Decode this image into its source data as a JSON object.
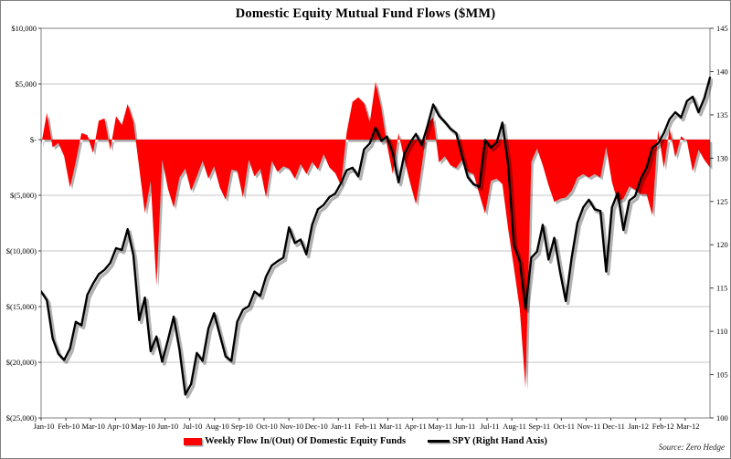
{
  "title": "Domestic Equity Mutual Fund Flows ($MM)",
  "source": "Source: Zero Hedge",
  "legend": {
    "flows_label": "Weekly Flow In/(Out) Of Domestic Equity Funds",
    "spy_label": "SPY (Right Hand Axis)"
  },
  "colors": {
    "flows_area": "#fe0000",
    "spy_line": "#000000",
    "gridline": "#c6c6c6",
    "plot_border": "#808080",
    "tick": "#404040",
    "shadow": "rgba(0,0,0,0.30)"
  },
  "chart_data": {
    "type": "area",
    "subtype": "combo-area-left-axis-line-right-axis",
    "x_unit": "weeks",
    "grid": "horizontal-on",
    "legend_position": "bottom-center",
    "month_labels": [
      "Jan-10",
      "Feb-10",
      "Mar-10",
      "Apr-10",
      "May-10",
      "Jun-10",
      "Jul-10",
      "Aug-10",
      "Sep-10",
      "Oct-10",
      "Nov-10",
      "Dec-10",
      "Jan-11",
      "Feb-11",
      "Mar-11",
      "Apr-11",
      "May-11",
      "Jun-11",
      "Jul-11",
      "Aug-11",
      "Sep-11",
      "Oct-11",
      "Nov-11",
      "Dec-11",
      "Jan-12",
      "Feb-12",
      "Mar-12"
    ],
    "left_axis": {
      "title": "Weekly Flow In/(Out) Of Domestic Equity Funds ($MM)",
      "min": -25000,
      "max": 10000,
      "step": 5000,
      "tick_labels": [
        "$10,000",
        "$5,000",
        "$-",
        "$(5,000)",
        "$(10,000)",
        "$(15,000)",
        "$(20,000)",
        "$(25,000)"
      ],
      "tick_values": [
        10000,
        5000,
        0,
        -5000,
        -10000,
        -15000,
        -20000,
        -25000
      ]
    },
    "right_axis": {
      "title": "SPY (Right Hand Axis)",
      "min": 100,
      "max": 145,
      "step": 5,
      "tick_labels": [
        "145",
        "140",
        "135",
        "130",
        "125",
        "120",
        "115",
        "110",
        "105",
        "100"
      ],
      "tick_values": [
        145,
        140,
        135,
        130,
        125,
        120,
        115,
        110,
        105,
        100
      ]
    },
    "series": [
      {
        "name": "Weekly Flow In/(Out) Of Domestic Equity Funds",
        "type": "area",
        "axis": "left",
        "color": "#fe0000",
        "values": [
          -500,
          2400,
          -700,
          -300,
          -1500,
          -4300,
          -2000,
          600,
          400,
          -1200,
          1700,
          1900,
          -900,
          2100,
          1300,
          3200,
          1600,
          -2500,
          -6600,
          -3700,
          -13100,
          -1800,
          -4400,
          -6100,
          -3400,
          -2600,
          -4600,
          -3300,
          -1900,
          -3500,
          -2400,
          -4300,
          -5400,
          -2700,
          -2800,
          -5200,
          -1800,
          -3300,
          -2600,
          -5200,
          -1900,
          -2900,
          -2400,
          -2600,
          -3500,
          -2200,
          -3100,
          -2000,
          -2700,
          -1300,
          -2500,
          -3000,
          -4100,
          650,
          3400,
          3800,
          3300,
          1550,
          5200,
          2800,
          -500,
          -3100,
          570,
          -1800,
          -3900,
          -5800,
          -2400,
          1400,
          2000,
          -2050,
          -1500,
          -2300,
          -2550,
          -1800,
          -2900,
          -3100,
          -4900,
          -6650,
          -3700,
          -3500,
          -4000,
          -8000,
          -11500,
          -15200,
          -22300,
          -2000,
          -800,
          -2300,
          -4100,
          -5600,
          -5300,
          -5200,
          -4600,
          -3400,
          -3100,
          -3400,
          -3100,
          -3400,
          -650,
          -3800,
          -5600,
          -5300,
          -4200,
          -4500,
          -4900,
          -4900,
          -6800,
          850,
          -2550,
          1000,
          -1600,
          300,
          -150,
          -2850,
          -900,
          -1800,
          -2500
        ]
      },
      {
        "name": "SPY (Right Hand Axis)",
        "type": "line",
        "axis": "right",
        "color": "#000000",
        "values": [
          114.6,
          113.6,
          109.2,
          107.4,
          106.7,
          108.0,
          111.1,
          110.7,
          114.2,
          115.5,
          116.6,
          117.1,
          117.9,
          119.6,
          119.4,
          121.8,
          118.8,
          111.3,
          113.9,
          107.7,
          109.4,
          106.5,
          109.0,
          111.7,
          107.9,
          102.7,
          103.9,
          107.5,
          106.6,
          110.3,
          112.1,
          109.6,
          107.1,
          106.6,
          111.1,
          112.5,
          112.9,
          114.6,
          114.1,
          116.3,
          117.6,
          118.1,
          118.5,
          122.0,
          120.2,
          120.6,
          118.9,
          122.3,
          124.1,
          124.6,
          125.5,
          125.9,
          127.1,
          128.6,
          128.9,
          127.9,
          131.0,
          131.7,
          133.5,
          132.0,
          132.5,
          130.5,
          127.2,
          130.5,
          131.8,
          132.8,
          131.5,
          133.7,
          136.2,
          134.9,
          134.2,
          133.4,
          132.9,
          130.2,
          127.8,
          127.0,
          126.7,
          132.1,
          131.2,
          131.8,
          134.1,
          129.3,
          120.0,
          118.1,
          112.6,
          118.5,
          119.2,
          122.3,
          118.3,
          120.8,
          116.9,
          113.5,
          118.5,
          122.5,
          124.3,
          125.2,
          124.1,
          123.9,
          116.9,
          124.3,
          126.0,
          121.7,
          125.1,
          125.6,
          127.6,
          128.9,
          131.2,
          131.7,
          132.9,
          134.5,
          135.3,
          134.7,
          136.6,
          137.1,
          135.3,
          136.9,
          139.3
        ]
      }
    ]
  }
}
